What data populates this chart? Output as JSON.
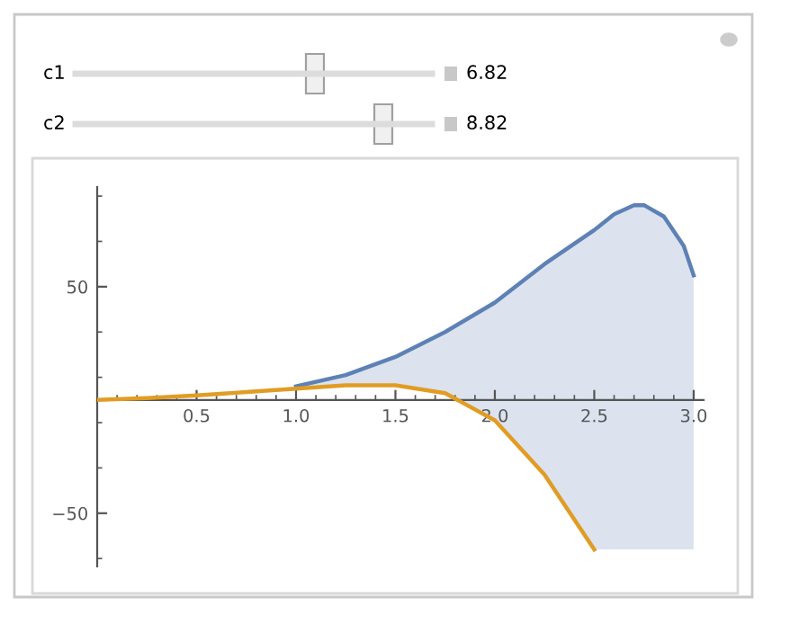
{
  "chart_data": {
    "type": "line",
    "x": [
      0,
      0.25,
      0.5,
      0.75,
      1.0,
      1.25,
      1.5,
      1.75,
      2.0,
      2.25,
      2.5,
      2.6,
      2.7,
      2.75,
      2.85,
      2.95,
      3.0
    ],
    "series": [
      {
        "color": "#5e81b5",
        "values": [
          null,
          null,
          null,
          null,
          6,
          11,
          19,
          30,
          43,
          60,
          75,
          82,
          86,
          86,
          81,
          68,
          55
        ],
        "lower": [
          0,
          0.8,
          2,
          3.5,
          5,
          6.5,
          6.5,
          3,
          -9,
          -33,
          -66,
          -66,
          -66,
          -66,
          -66,
          -66,
          -66
        ],
        "upper": [
          0,
          0.8,
          2,
          3.5,
          6,
          11,
          19,
          30,
          43,
          60,
          75,
          82,
          86,
          86,
          81,
          68,
          55
        ]
      },
      {
        "color": "#e19c24",
        "values": [
          0,
          0.8,
          2,
          3.5,
          5,
          6.5,
          6.5,
          3,
          -9,
          -33,
          -66,
          null,
          null,
          null,
          null,
          null,
          null
        ]
      }
    ],
    "xlim": [
      0,
      3.05
    ],
    "ylim": [
      -73.5,
      94
    ],
    "xticks": [
      0.5,
      {
        "value": 1,
        "label": "1.0"
      },
      1.5,
      {
        "value": 2,
        "label": "2.0"
      },
      2.5,
      {
        "value": 3,
        "label": "3.0"
      }
    ],
    "yticks": [
      -50,
      50
    ],
    "grid": false,
    "legend": false,
    "marker": "none",
    "line_style": "solid",
    "annotations": [
      "c1",
      "6.82",
      "c2",
      "8.82"
    ]
  }
}
